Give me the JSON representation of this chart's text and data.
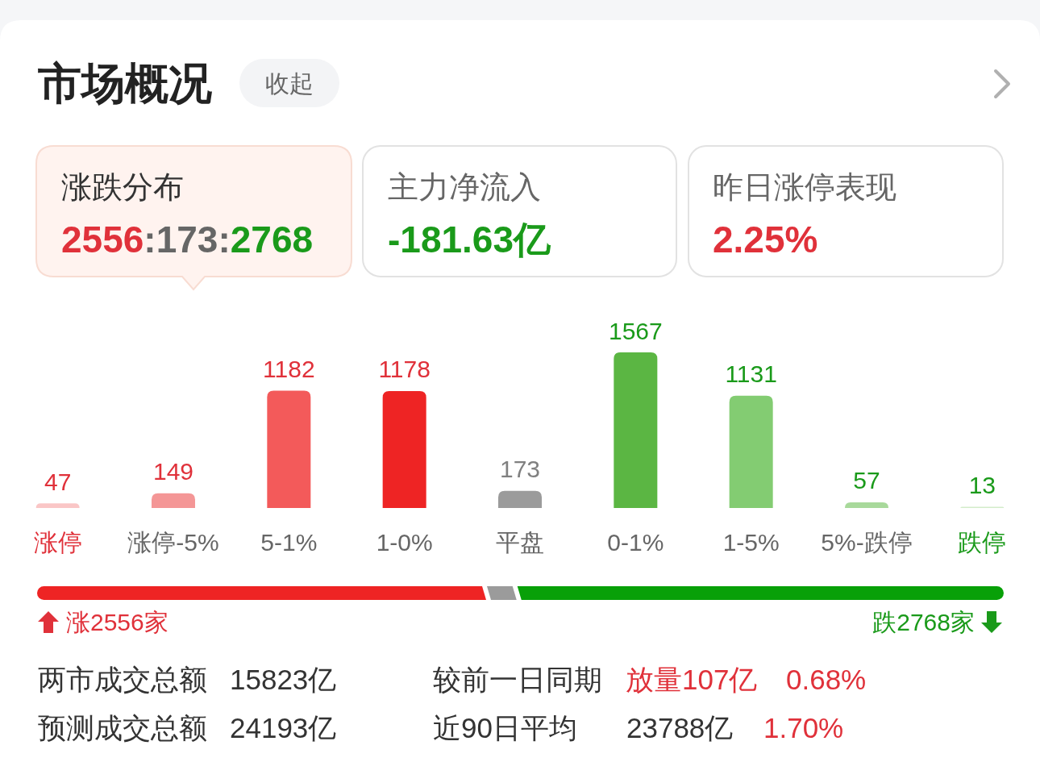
{
  "chart_data": [
    {
      "type": "other",
      "title": "市场概况",
      "annotations": [
        "收起",
        "涨跌分布",
        "2556",
        ":173:",
        "2768",
        "主力净流入",
        "-181.63亿",
        "昨日涨停表现",
        "2.25%"
      ]
    },
    {
      "type": "bar",
      "categories": [
        "涨停",
        "涨停-5%",
        "5-1%",
        "1-0%",
        "平盘",
        "0-1%",
        "1-5%",
        "5%-跌停",
        "跌停"
      ],
      "values": [
        47,
        149,
        1182,
        1178,
        173,
        1567,
        1131,
        57,
        13
      ],
      "colors": [
        "#fac6c6",
        "#f49696",
        "#f35a5a",
        "#ee2424",
        "#9b9b9b",
        "#5bb643",
        "#83cc72",
        "#a8d99b",
        "#d3ecca"
      ],
      "data_labels": true
    },
    {
      "type": "bar",
      "orientation": "horizontal",
      "stacked": true,
      "categories": [
        null
      ],
      "xlim": [
        0,
        5497
      ],
      "series": [
        {
          "color": "#ee2424",
          "values": [
            2556
          ],
          "value_labels": [
            "涨2556家"
          ]
        },
        {
          "color": "#9b9b9b",
          "values": [
            173
          ]
        },
        {
          "color": "#08a008",
          "values": [
            2768
          ],
          "value_labels": [
            "跌2768家"
          ]
        }
      ]
    },
    {
      "type": "other",
      "annotations": [
        "两市成交总额",
        "15823亿",
        "较前一日同期",
        "放量107亿",
        "0.68%",
        "预测成交总额",
        "24193亿",
        "近90日平均",
        "23788亿",
        "1.70%"
      ]
    }
  ]
}
